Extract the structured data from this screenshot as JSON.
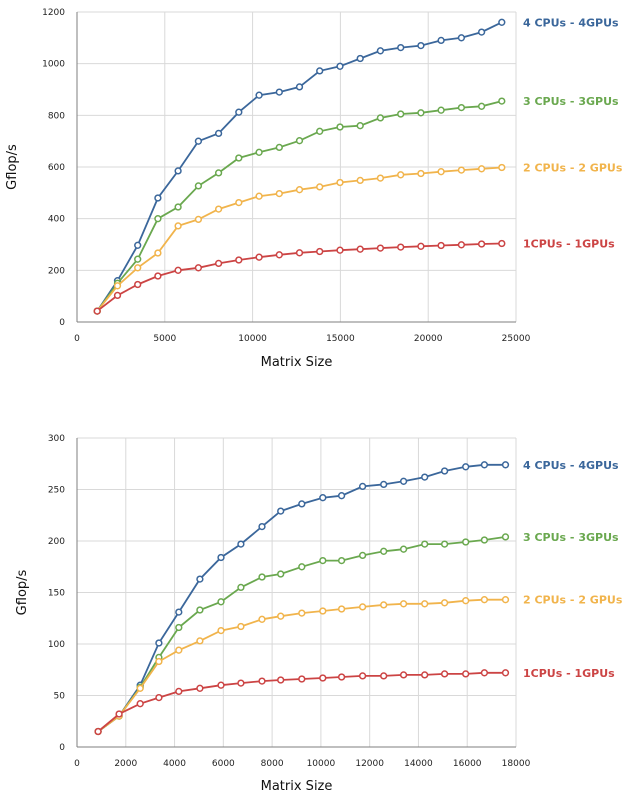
{
  "chart_data": [
    {
      "type": "line",
      "title": "",
      "xlabel": "Matrix Size",
      "ylabel": "Gflop/s",
      "xlim": [
        0,
        25000
      ],
      "ylim": [
        0,
        1200
      ],
      "x_ticks": [
        "0",
        "5000",
        "10000",
        "15000",
        "20000",
        "25000"
      ],
      "y_ticks": [
        "0",
        "200",
        "400",
        "600",
        "800",
        "1000",
        "1200"
      ],
      "grid": true,
      "legend": "right",
      "x": [
        1152,
        2304,
        3456,
        4608,
        5760,
        6912,
        8064,
        9216,
        10368,
        11520,
        12672,
        13824,
        14976,
        16128,
        17280,
        18432,
        19584,
        20736,
        21888,
        23040,
        24192
      ],
      "series": [
        {
          "name": "4 CPUs - 4GPUs",
          "color": "#3b679b",
          "values": [
            42,
            160,
            297,
            480,
            585,
            700,
            730,
            812,
            878,
            890,
            910,
            972,
            990,
            1020,
            1050,
            1062,
            1070,
            1090,
            1100,
            1122,
            1160
          ]
        },
        {
          "name": "3 CPUs - 3GPUs",
          "color": "#6aa84f",
          "values": [
            42,
            150,
            243,
            400,
            445,
            527,
            577,
            635,
            657,
            676,
            702,
            738,
            755,
            760,
            790,
            805,
            810,
            820,
            830,
            835,
            855
          ]
        },
        {
          "name": "2 CPUs - 2 GPUs",
          "color": "#f1b44c",
          "values": [
            42,
            140,
            210,
            267,
            372,
            397,
            437,
            462,
            487,
            497,
            512,
            523,
            540,
            548,
            557,
            570,
            575,
            582,
            588,
            593,
            598
          ]
        },
        {
          "name": "1CPUs - 1GPUs",
          "color": "#cc4444",
          "values": [
            42,
            103,
            145,
            178,
            200,
            210,
            227,
            240,
            251,
            260,
            268,
            273,
            278,
            282,
            286,
            290,
            293,
            296,
            299,
            302,
            304
          ]
        }
      ]
    },
    {
      "type": "line",
      "title": "",
      "xlabel": "Matrix Size",
      "ylabel": "Gflop/s",
      "xlim": [
        0,
        18000
      ],
      "ylim": [
        0,
        300
      ],
      "x_ticks": [
        "0",
        "2000",
        "4000",
        "6000",
        "8000",
        "10000",
        "12000",
        "14000",
        "16000",
        "18000"
      ],
      "y_ticks": [
        "0",
        "50",
        "100",
        "150",
        "200",
        "250",
        "300"
      ],
      "grid": true,
      "legend": "right",
      "x": [
        864,
        1728,
        2592,
        3360,
        4176,
        5040,
        5904,
        6720,
        7584,
        8352,
        9216,
        10080,
        10848,
        11712,
        12576,
        13392,
        14256,
        15072,
        15936,
        16704,
        17568
      ],
      "series": [
        {
          "name": "4 CPUs - 4GPUs",
          "color": "#3b679b",
          "values": [
            15,
            30,
            60,
            101,
            131,
            163,
            184,
            197,
            214,
            229,
            236,
            242,
            244,
            253,
            255,
            258,
            262,
            268,
            272,
            274,
            274
          ]
        },
        {
          "name": "3 CPUs - 3GPUs",
          "color": "#6aa84f",
          "values": [
            15,
            30,
            58,
            87,
            116,
            133,
            141,
            155,
            165,
            168,
            175,
            181,
            181,
            186,
            190,
            192,
            197,
            197,
            199,
            201,
            204
          ]
        },
        {
          "name": "2 CPUs - 2 GPUs",
          "color": "#f1b44c",
          "values": [
            15,
            30,
            57,
            83,
            94,
            103,
            113,
            117,
            124,
            127,
            130,
            132,
            134,
            136,
            138,
            139,
            139,
            140,
            142,
            143,
            143
          ]
        },
        {
          "name": "1CPUs - 1GPUs",
          "color": "#cc4444",
          "values": [
            15,
            32,
            42,
            48,
            54,
            57,
            60,
            62,
            64,
            65,
            66,
            67,
            68,
            69,
            69,
            70,
            70,
            71,
            71,
            72,
            72
          ]
        }
      ]
    }
  ]
}
